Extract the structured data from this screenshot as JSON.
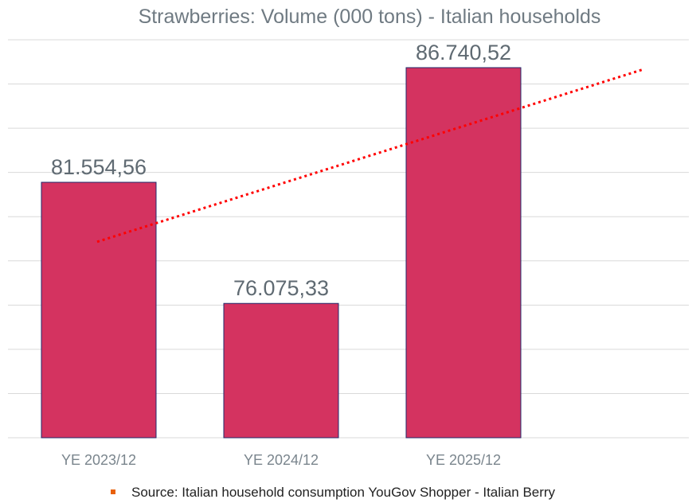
{
  "chart_data": {
    "type": "bar",
    "title": "Strawberries: Volume (000 tons) - Italian households",
    "categories": [
      "YE 2023/12",
      "YE 2024/12",
      "YE 2025/12"
    ],
    "values": [
      81554.56,
      76075.33,
      86740.52
    ],
    "data_labels": [
      "81.554,56",
      "76.075,33",
      "86.740,52"
    ],
    "ylim": [
      70000,
      88000
    ],
    "ygrid_step": 2000,
    "grid": true,
    "y_tick_labels_shown": false,
    "trendline": {
      "type": "linear",
      "style": "dotted",
      "color": "#ff0000",
      "forward_periods": 1
    },
    "colors": {
      "bar": "#d43360",
      "bar_border": "#1f2a6b",
      "grid": "#d9d9d9"
    },
    "legend": {
      "placement": "bottom",
      "marker_color": "#e8610c",
      "text": "Source: Italian household consumption YouGov Shopper - Italian Berry"
    }
  }
}
